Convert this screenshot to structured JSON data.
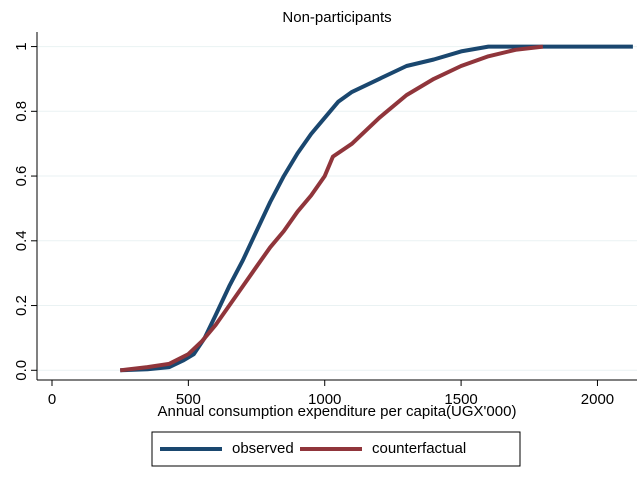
{
  "chart_data": {
    "type": "line",
    "title": "Non-participants",
    "x_label": "Annual consumption expenditure per capita(UGX'000)",
    "xlim": [
      -55,
      2145
    ],
    "ylim": [
      -0.03,
      1.045
    ],
    "xticks": [
      0,
      500,
      1000,
      1500,
      2000
    ],
    "yticks": [
      {
        "value": 0,
        "label": "0.0"
      },
      0.2,
      0.4,
      0.6,
      0.8,
      1
    ],
    "grid": true,
    "series": [
      {
        "name": "observed",
        "color": "#1a476f",
        "x": [
          250,
          350,
          430,
          480,
          520,
          560,
          600,
          650,
          700,
          750,
          800,
          850,
          900,
          950,
          1000,
          1050,
          1100,
          1200,
          1300,
          1400,
          1500,
          1600,
          2130
        ],
        "values": [
          0,
          0.003,
          0.01,
          0.03,
          0.05,
          0.1,
          0.17,
          0.26,
          0.34,
          0.43,
          0.52,
          0.6,
          0.67,
          0.73,
          0.78,
          0.83,
          0.86,
          0.9,
          0.94,
          0.96,
          0.985,
          1,
          1
        ]
      },
      {
        "name": "counterfactual",
        "color": "#90353b",
        "x": [
          250,
          350,
          430,
          500,
          550,
          600,
          650,
          700,
          750,
          800,
          850,
          900,
          950,
          1000,
          1030,
          1100,
          1200,
          1300,
          1400,
          1500,
          1600,
          1700,
          1800
        ],
        "values": [
          0,
          0.01,
          0.02,
          0.05,
          0.09,
          0.14,
          0.2,
          0.26,
          0.32,
          0.38,
          0.43,
          0.49,
          0.54,
          0.6,
          0.66,
          0.7,
          0.78,
          0.85,
          0.9,
          0.94,
          0.97,
          0.99,
          1
        ]
      }
    ]
  }
}
